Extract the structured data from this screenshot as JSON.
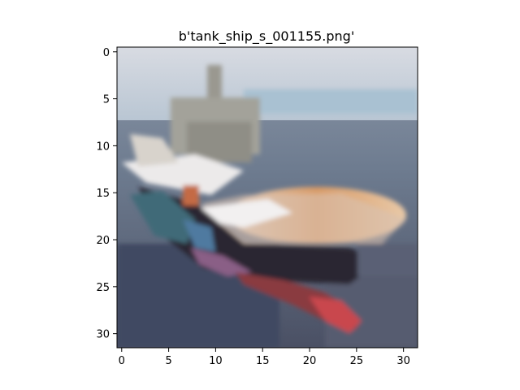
{
  "figure": {
    "title": "b'tank_ship_s_001155.png'",
    "image_semantic": "pixelated 32x32 photo of a ship on water",
    "x_ticks": [
      "0",
      "5",
      "10",
      "15",
      "20",
      "25",
      "30"
    ],
    "y_ticks": [
      "0",
      "5",
      "10",
      "15",
      "20",
      "25",
      "30"
    ],
    "image_size": [
      32,
      32
    ]
  },
  "colors": {
    "sky": "#c9ccd6",
    "sky_light": "#d8dbe2",
    "sky_blue": "#a9c1d2",
    "sea": "#6e7c90",
    "sea_dark": "#3d4458",
    "ship_white": "#e8e6e6",
    "deck_tan": "#d69a6a",
    "hull_dark": "#2a2830",
    "hull_red": "#c2404a",
    "superstructure": "#9c9a90",
    "bow_teal": "#3f6a78"
  }
}
